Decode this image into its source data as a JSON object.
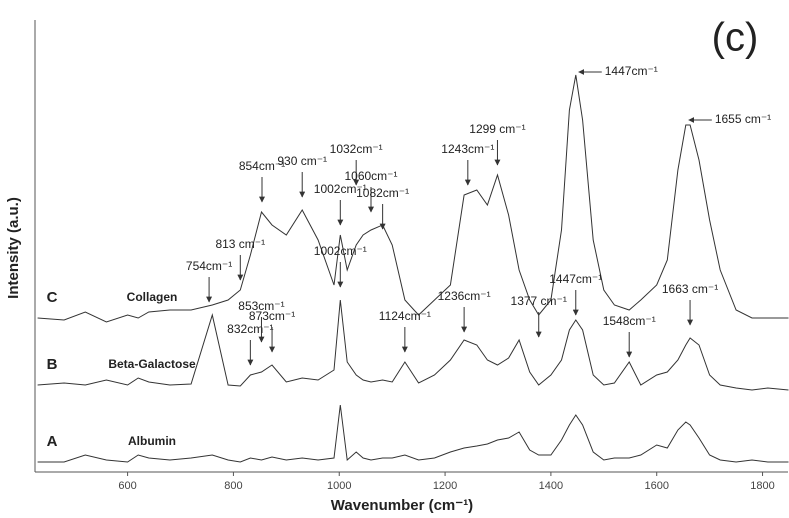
{
  "chart_data": {
    "type": "line",
    "panel_label": "(c)",
    "xlabel": "Wavenumber (cm⁻¹)",
    "ylabel": "Intensity (a.u.)",
    "xlim": [
      425,
      1850
    ],
    "ylim": [
      0,
      452
    ],
    "xticks": [
      600,
      800,
      1000,
      1200,
      1400,
      1600,
      1800
    ],
    "x": [
      430,
      480,
      520,
      560,
      600,
      620,
      640,
      680,
      720,
      760,
      790,
      813,
      832,
      853,
      873,
      900,
      930,
      960,
      990,
      1002,
      1015,
      1032,
      1045,
      1060,
      1082,
      1100,
      1124,
      1150,
      1180,
      1210,
      1236,
      1260,
      1280,
      1299,
      1320,
      1340,
      1360,
      1377,
      1400,
      1420,
      1435,
      1447,
      1460,
      1480,
      1500,
      1520,
      1548,
      1570,
      1600,
      1620,
      1640,
      1655,
      1663,
      1680,
      1700,
      1720,
      1750,
      1780,
      1810,
      1849
    ],
    "series": [
      {
        "name": "Collagen",
        "letter": "C",
        "color": "#333333",
        "values": [
          154,
          152,
          160,
          150,
          157,
          154,
          160,
          162,
          162,
          167,
          172,
          182,
          217,
          260,
          247,
          237,
          262,
          232,
          187,
          237,
          202,
          227,
          237,
          242,
          247,
          227,
          172,
          157,
          172,
          187,
          277,
          282,
          267,
          297,
          257,
          202,
          172,
          157,
          172,
          242,
          362,
          397,
          352,
          232,
          182,
          167,
          162,
          172,
          187,
          212,
          302,
          347,
          347,
          312,
          252,
          202,
          162,
          154,
          154,
          154
        ]
      },
      {
        "name": "Beta-Galactose",
        "letter": "B",
        "color": "#333333",
        "values": [
          87,
          89,
          87,
          92,
          87,
          94,
          90,
          87,
          88,
          157,
          87,
          86,
          97,
          100,
          107,
          90,
          94,
          92,
          102,
          172,
          110,
          97,
          92,
          90,
          92,
          90,
          110,
          89,
          97,
          112,
          132,
          127,
          112,
          107,
          114,
          132,
          100,
          87,
          97,
          112,
          142,
          152,
          142,
          97,
          87,
          89,
          110,
          87,
          97,
          100,
          112,
          127,
          134,
          127,
          97,
          87,
          84,
          82,
          84,
          82
        ]
      },
      {
        "name": "Albumin",
        "letter": "A",
        "color": "#333333",
        "values": [
          10,
          10,
          17,
          12,
          10,
          17,
          14,
          12,
          14,
          17,
          12,
          10,
          14,
          12,
          15,
          12,
          14,
          12,
          14,
          67,
          12,
          20,
          14,
          12,
          14,
          14,
          17,
          12,
          14,
          20,
          24,
          26,
          28,
          32,
          34,
          40,
          22,
          17,
          17,
          32,
          47,
          57,
          47,
          20,
          12,
          14,
          14,
          17,
          27,
          24,
          42,
          50,
          47,
          34,
          17,
          12,
          10,
          12,
          10,
          10
        ]
      }
    ],
    "annotations": [
      {
        "text": "813 cm⁻¹",
        "x": 813,
        "y": 189
      },
      {
        "text": "854cm⁻¹",
        "x": 854,
        "y": 267
      },
      {
        "text": "930 cm⁻¹",
        "x": 930,
        "y": 272
      },
      {
        "text": "1002cm⁻¹",
        "x": 1002,
        "y": 244
      },
      {
        "text": "1032cm⁻¹",
        "x": 1032,
        "y": 284
      },
      {
        "text": "1060cm⁻¹",
        "x": 1060,
        "y": 257
      },
      {
        "text": "1082cm⁻¹",
        "x": 1082,
        "y": 240
      },
      {
        "text": "1243cm⁻¹",
        "x": 1243,
        "y": 284
      },
      {
        "text": "1299 cm⁻¹",
        "x": 1299,
        "y": 304
      },
      {
        "text": "1447cm⁻¹",
        "x": 1447,
        "y": 400,
        "arrow": "left"
      },
      {
        "text": "1655 cm⁻¹",
        "x": 1655,
        "y": 352,
        "arrow": "left"
      },
      {
        "text": "754cm⁻¹",
        "x": 754,
        "y": 167
      },
      {
        "text": "832cm⁻¹",
        "x": 832,
        "y": 104
      },
      {
        "text": "853cm⁻¹",
        "x": 853,
        "y": 127
      },
      {
        "text": "873cm⁻¹",
        "x": 873,
        "y": 117
      },
      {
        "text": "1002cm⁻¹",
        "x": 1002,
        "y": 182
      },
      {
        "text": "1124cm⁻¹",
        "x": 1124,
        "y": 117
      },
      {
        "text": "1236cm⁻¹",
        "x": 1236,
        "y": 137
      },
      {
        "text": "1377 cm⁻¹",
        "x": 1377,
        "y": 132
      },
      {
        "text": "1447cm⁻¹",
        "x": 1447,
        "y": 154
      },
      {
        "text": "1548cm⁻¹",
        "x": 1548,
        "y": 112
      },
      {
        "text": "1663 cm⁻¹",
        "x": 1663,
        "y": 144
      }
    ]
  }
}
